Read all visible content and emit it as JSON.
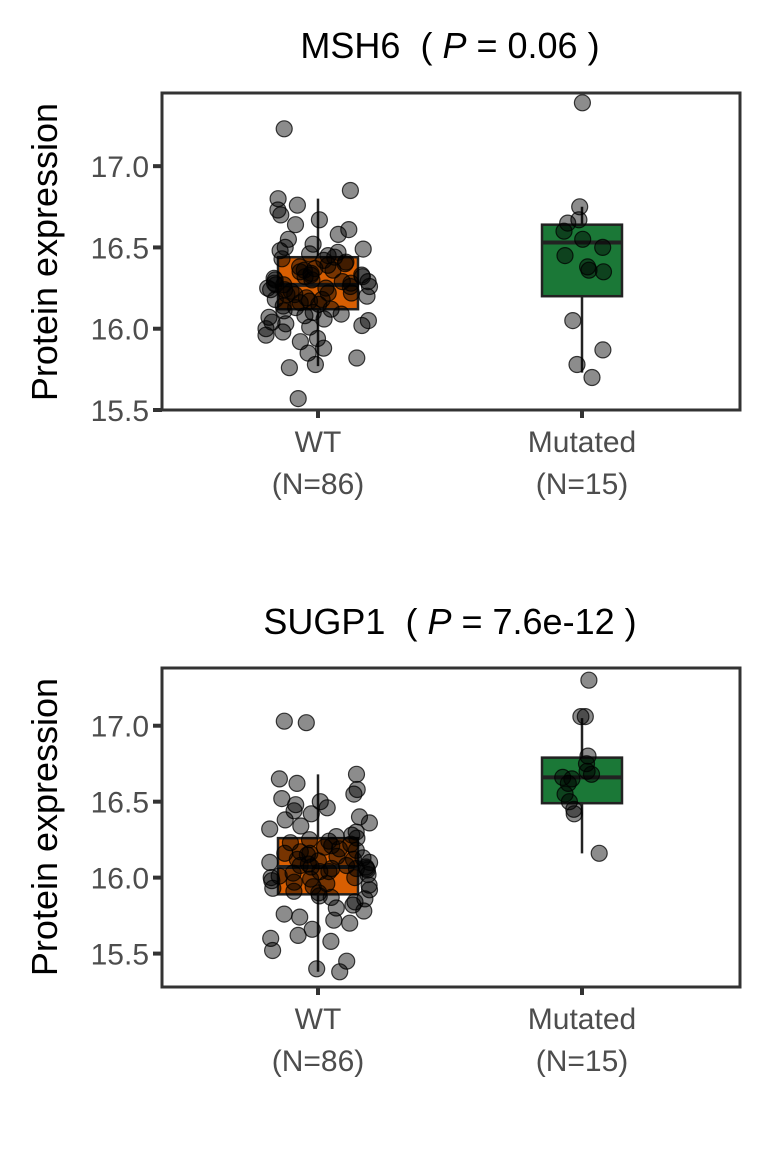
{
  "chart_data": [
    {
      "type": "boxplot",
      "title": {
        "gene": "MSH6",
        "open": "(",
        "p_symbol": "P",
        "p_text": "= 0.06",
        "close": ")"
      },
      "ylabel": "Protein expression",
      "ylim": [
        15.5,
        17.45
      ],
      "yticks": [
        15.5,
        16.0,
        16.5,
        17.0
      ],
      "ytick_labels": [
        "15.5",
        "16.0",
        "16.5",
        "17.0"
      ],
      "groups": [
        {
          "label": "WT",
          "n_label": "(N=86)",
          "color": "#d95f02",
          "box": {
            "whisker_low": 15.77,
            "q1": 16.12,
            "median": 16.27,
            "q3": 16.44,
            "whisker_high": 16.8
          },
          "points": [
            16.0,
            16.02,
            16.04,
            16.06,
            16.08,
            16.1,
            16.12,
            16.14,
            16.16,
            16.18,
            16.2,
            16.22,
            16.24,
            16.26,
            16.28,
            16.3,
            16.32,
            16.34,
            16.36,
            16.38,
            16.4,
            16.42,
            16.44,
            16.46,
            16.48,
            15.92,
            15.94,
            15.96,
            15.98,
            16.01,
            16.05,
            16.09,
            16.13,
            16.17,
            16.21,
            16.25,
            16.29,
            16.33,
            16.37,
            16.41,
            16.45,
            16.49,
            16.52,
            16.55,
            16.58,
            16.61,
            16.64,
            16.67,
            16.7,
            16.73,
            16.76,
            16.8,
            16.85,
            15.88,
            15.85,
            15.82,
            15.78,
            15.76,
            15.57,
            17.23,
            16.27,
            16.28,
            16.26,
            16.25,
            16.3,
            16.31,
            16.22,
            16.23,
            16.19,
            16.35,
            16.36,
            16.15,
            16.11,
            16.07,
            16.03,
            16.39,
            16.43,
            16.47,
            16.5,
            16.24,
            16.29,
            16.33,
            16.18,
            16.21,
            16.27,
            16.32
          ]
        },
        {
          "label": "Mutated",
          "n_label": "(N=15)",
          "color": "#1b7837",
          "box": {
            "whisker_low": 15.73,
            "q1": 16.2,
            "median": 16.53,
            "q3": 16.64,
            "whisker_high": 16.75
          },
          "points": [
            17.39,
            16.75,
            16.67,
            16.65,
            16.6,
            16.55,
            16.45,
            16.38,
            16.36,
            16.35,
            16.05,
            15.87,
            15.78,
            15.7,
            16.5
          ]
        }
      ]
    },
    {
      "type": "boxplot",
      "title": {
        "gene": "SUGP1",
        "open": "(",
        "p_symbol": "P",
        "p_text": "= 7.6e-12",
        "close": ")"
      },
      "ylabel": "Protein expression",
      "ylim": [
        15.28,
        17.38
      ],
      "yticks": [
        15.5,
        16.0,
        16.5,
        17.0
      ],
      "ytick_labels": [
        "15.5",
        "16.0",
        "16.5",
        "17.0"
      ],
      "groups": [
        {
          "label": "WT",
          "n_label": "(N=86)",
          "color": "#d95f02",
          "box": {
            "whisker_low": 15.38,
            "q1": 15.89,
            "median": 16.07,
            "q3": 16.26,
            "whisker_high": 16.68
          },
          "points": [
            15.7,
            15.72,
            15.74,
            15.76,
            15.78,
            15.8,
            15.82,
            15.84,
            15.86,
            15.88,
            15.9,
            15.92,
            15.94,
            15.96,
            15.98,
            16.0,
            16.02,
            16.04,
            16.06,
            16.08,
            16.1,
            16.12,
            16.14,
            16.16,
            16.18,
            16.2,
            16.22,
            16.24,
            16.26,
            16.28,
            16.3,
            16.32,
            16.34,
            16.36,
            16.38,
            16.4,
            16.42,
            16.44,
            16.46,
            16.48,
            16.5,
            16.52,
            16.55,
            16.58,
            16.62,
            16.65,
            16.68,
            15.66,
            15.62,
            15.6,
            15.58,
            15.52,
            15.45,
            15.4,
            15.38,
            17.02,
            17.03,
            16.07,
            16.08,
            16.05,
            16.06,
            16.09,
            16.11,
            16.03,
            16.01,
            16.13,
            16.15,
            15.99,
            15.97,
            16.17,
            16.19,
            15.95,
            15.93,
            16.21,
            16.23,
            15.91,
            16.25,
            16.27,
            16.07,
            16.1,
            16.0,
            16.12,
            16.04,
            16.16,
            15.87,
            16.06
          ]
        },
        {
          "label": "Mutated",
          "n_label": "(N=15)",
          "color": "#1b7837",
          "box": {
            "whisker_low": 16.16,
            "q1": 16.49,
            "median": 16.66,
            "q3": 16.79,
            "whisker_high": 17.05
          },
          "points": [
            17.3,
            17.06,
            17.06,
            16.8,
            16.75,
            16.7,
            16.68,
            16.66,
            16.65,
            16.62,
            16.55,
            16.5,
            16.45,
            16.42,
            16.16
          ]
        }
      ]
    }
  ]
}
